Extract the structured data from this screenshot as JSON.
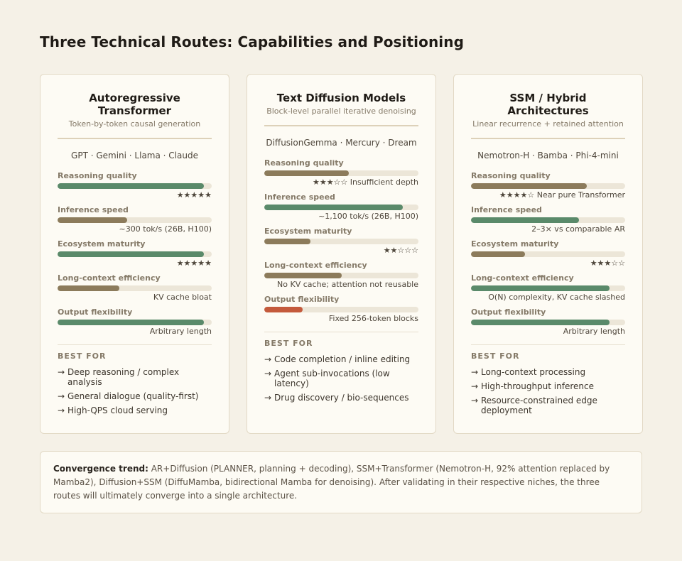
{
  "title": "Three Technical Routes: Capabilities and Positioning",
  "colors": {
    "green": "#5a8a6a",
    "brown": "#8c7b5b",
    "red": "#c45a3c",
    "track": "#ece6d8"
  },
  "metric_labels": [
    "Reasoning quality",
    "Inference speed",
    "Ecosystem maturity",
    "Long-context efficiency",
    "Output flexibility"
  ],
  "best_for_label": "BEST FOR",
  "arrow": "→",
  "cards": [
    {
      "title": "Autoregressive Transformer",
      "subtitle": "Token-by-token causal generation",
      "models": "GPT · Gemini · Llama · Claude",
      "metrics": [
        {
          "label": "Reasoning quality",
          "level": 0.95,
          "color": "green",
          "note": "★★★★★"
        },
        {
          "label": "Inference speed",
          "level": 0.45,
          "color": "brown",
          "note": "~300 tok/s (26B, H100)"
        },
        {
          "label": "Ecosystem maturity",
          "level": 0.95,
          "color": "green",
          "note": "★★★★★"
        },
        {
          "label": "Long-context efficiency",
          "level": 0.4,
          "color": "brown",
          "note": "KV cache bloat"
        },
        {
          "label": "Output flexibility",
          "level": 0.95,
          "color": "green",
          "note": "Arbitrary length"
        }
      ],
      "best_for": [
        "Deep reasoning / complex analysis",
        "General dialogue (quality-first)",
        "High-QPS cloud serving"
      ]
    },
    {
      "title": "Text Diffusion Models",
      "subtitle": "Block-level parallel iterative denoising",
      "models": "DiffusionGemma · Mercury · Dream",
      "metrics": [
        {
          "label": "Reasoning quality",
          "level": 0.55,
          "color": "brown",
          "note": "★★★☆☆ Insufficient depth"
        },
        {
          "label": "Inference speed",
          "level": 0.9,
          "color": "green",
          "note": "~1,100 tok/s (26B, H100)"
        },
        {
          "label": "Ecosystem maturity",
          "level": 0.3,
          "color": "brown",
          "note": "★★☆☆☆"
        },
        {
          "label": "Long-context efficiency",
          "level": 0.5,
          "color": "brown",
          "note": "No KV cache; attention not reusable"
        },
        {
          "label": "Output flexibility",
          "level": 0.25,
          "color": "red",
          "note": "Fixed 256-token blocks"
        }
      ],
      "best_for": [
        "Code completion / inline editing",
        "Agent sub-invocations (low latency)",
        "Drug discovery / bio-sequences"
      ]
    },
    {
      "title": "SSM / Hybrid Architectures",
      "subtitle": "Linear recurrence + retained attention",
      "models": "Nemotron-H · Bamba · Phi-4-mini",
      "metrics": [
        {
          "label": "Reasoning quality",
          "level": 0.75,
          "color": "brown",
          "note": "★★★★☆ Near pure Transformer"
        },
        {
          "label": "Inference speed",
          "level": 0.7,
          "color": "green",
          "note": "2–3× vs comparable AR"
        },
        {
          "label": "Ecosystem maturity",
          "level": 0.35,
          "color": "brown",
          "note": "★★★☆☆"
        },
        {
          "label": "Long-context efficiency",
          "level": 0.9,
          "color": "green",
          "note": "O(N) complexity, KV cache slashed"
        },
        {
          "label": "Output flexibility",
          "level": 0.9,
          "color": "green",
          "note": "Arbitrary length"
        }
      ],
      "best_for": [
        "Long-context processing",
        "High-throughput inference",
        "Resource-constrained edge deployment"
      ]
    }
  ],
  "footer": {
    "bold": "Convergence trend:",
    "text": " AR+Diffusion (PLANNER, planning + decoding), SSM+Transformer (Nemotron-H, 92% attention replaced by Mamba2), Diffusion+SSM (DiffuMamba, bidirectional Mamba for denoising). After validating in their respective niches, the three routes will ultimately converge into a single architecture."
  }
}
